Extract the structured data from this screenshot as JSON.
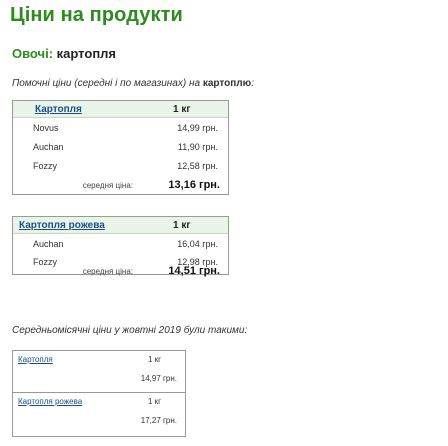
{
  "page": {
    "title": "Ціни на продукти",
    "category": "Овочі:",
    "product": "картопля"
  },
  "intro": {
    "text": "Помочні ціни (середні і по магазинах) на",
    "product_bold": "картоплю",
    "suffix": ":"
  },
  "tables": [
    {
      "product": "Картопля",
      "unit": "1 кг",
      "rows": [
        {
          "shop": "Novus",
          "price": "14,99 грн."
        },
        {
          "shop": "Auchan",
          "price": "11,90 грн."
        },
        {
          "shop": "Fozzy",
          "price": "12,58 грн."
        }
      ],
      "avg_label": "середня ціна:",
      "avg_value": "13,16 грн."
    },
    {
      "product": "Картопля рожева",
      "unit": "1 кг",
      "rows": [
        {
          "shop": "Auchan",
          "price": "16,04 грн."
        },
        {
          "shop": "Fozzy",
          "price": "12,98 грн."
        }
      ],
      "avg_label": "середня ціна:",
      "avg_value": "14,51 грн."
    }
  ],
  "monthly": {
    "note": "Середньомісячні ціни у жовтні 2019 були такими:",
    "rows": [
      {
        "product": "Картопля",
        "unit": "1 кг",
        "price": "14,97 грн."
      },
      {
        "product": "Картопля рожева",
        "unit": "1 кг",
        "price": "17,27 грн."
      }
    ]
  }
}
